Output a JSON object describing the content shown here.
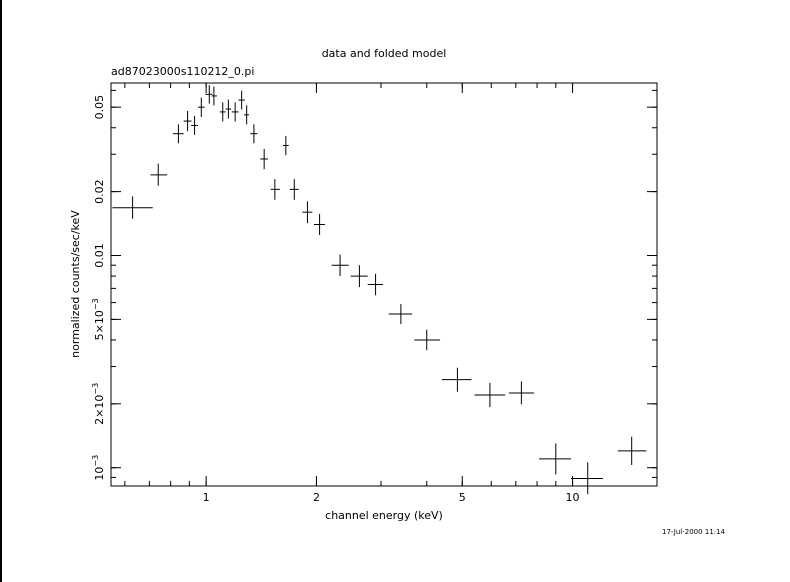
{
  "chart_data": {
    "type": "scatter",
    "title": "data and folded model",
    "subtitle": "ad87023000s110212_0.pi",
    "xlabel": "channel energy (keV)",
    "ylabel": "normalized counts/sec/keV",
    "xscale": "log",
    "yscale": "log",
    "xlim": [
      0.55,
      17
    ],
    "ylim": [
      0.00082,
      0.065
    ],
    "grid": false,
    "timestamp": "17-Jul-2000 11:14",
    "x_ticks": [
      {
        "value": 1,
        "label": "1"
      },
      {
        "value": 2,
        "label": "2"
      },
      {
        "value": 5,
        "label": "5"
      },
      {
        "value": 10,
        "label": "10"
      }
    ],
    "y_ticks": [
      {
        "value": 0.001,
        "label": "10",
        "sup": "−3"
      },
      {
        "value": 0.002,
        "label": "2×10",
        "sup": "−3"
      },
      {
        "value": 0.005,
        "label": "5×10",
        "sup": "−3"
      },
      {
        "value": 0.01,
        "label": "0.01",
        "sup": ""
      },
      {
        "value": 0.02,
        "label": "0.02",
        "sup": ""
      },
      {
        "value": 0.05,
        "label": "0.05",
        "sup": ""
      }
    ],
    "points": [
      {
        "x": 0.63,
        "xlo": 0.555,
        "xhi": 0.715,
        "y": 0.0168,
        "ylo": 0.0149,
        "yhi": 0.019
      },
      {
        "x": 0.74,
        "xlo": 0.705,
        "xhi": 0.783,
        "y": 0.024,
        "ylo": 0.0213,
        "yhi": 0.0271
      },
      {
        "x": 0.84,
        "xlo": 0.812,
        "xhi": 0.868,
        "y": 0.0375,
        "ylo": 0.0338,
        "yhi": 0.0415
      },
      {
        "x": 0.89,
        "xlo": 0.868,
        "xhi": 0.912,
        "y": 0.043,
        "ylo": 0.0385,
        "yhi": 0.048
      },
      {
        "x": 0.93,
        "xlo": 0.91,
        "xhi": 0.95,
        "y": 0.041,
        "ylo": 0.037,
        "yhi": 0.0455
      },
      {
        "x": 0.97,
        "xlo": 0.95,
        "xhi": 0.99,
        "y": 0.05,
        "ylo": 0.045,
        "yhi": 0.0555
      },
      {
        "x": 1.02,
        "xlo": 0.995,
        "xhi": 1.04,
        "y": 0.0575,
        "ylo": 0.052,
        "yhi": 0.0635
      },
      {
        "x": 1.05,
        "xlo": 1.035,
        "xhi": 1.07,
        "y": 0.0565,
        "ylo": 0.051,
        "yhi": 0.0625
      },
      {
        "x": 1.11,
        "xlo": 1.09,
        "xhi": 1.13,
        "y": 0.0475,
        "ylo": 0.0428,
        "yhi": 0.0527
      },
      {
        "x": 1.15,
        "xlo": 1.13,
        "xhi": 1.17,
        "y": 0.049,
        "ylo": 0.0442,
        "yhi": 0.0543
      },
      {
        "x": 1.2,
        "xlo": 1.175,
        "xhi": 1.225,
        "y": 0.0475,
        "ylo": 0.0428,
        "yhi": 0.0527
      },
      {
        "x": 1.25,
        "xlo": 1.225,
        "xhi": 1.275,
        "y": 0.054,
        "ylo": 0.0488,
        "yhi": 0.0598
      },
      {
        "x": 1.29,
        "xlo": 1.27,
        "xhi": 1.31,
        "y": 0.046,
        "ylo": 0.0415,
        "yhi": 0.051
      },
      {
        "x": 1.35,
        "xlo": 1.32,
        "xhi": 1.38,
        "y": 0.0375,
        "ylo": 0.0338,
        "yhi": 0.0415
      },
      {
        "x": 1.44,
        "xlo": 1.405,
        "xhi": 1.475,
        "y": 0.0285,
        "ylo": 0.0255,
        "yhi": 0.0318
      },
      {
        "x": 1.54,
        "xlo": 1.5,
        "xhi": 1.59,
        "y": 0.0205,
        "ylo": 0.0183,
        "yhi": 0.0229
      },
      {
        "x": 1.65,
        "xlo": 1.62,
        "xhi": 1.68,
        "y": 0.033,
        "ylo": 0.0297,
        "yhi": 0.0366
      },
      {
        "x": 1.74,
        "xlo": 1.69,
        "xhi": 1.79,
        "y": 0.0205,
        "ylo": 0.0183,
        "yhi": 0.0229
      },
      {
        "x": 1.89,
        "xlo": 1.83,
        "xhi": 1.95,
        "y": 0.016,
        "ylo": 0.0142,
        "yhi": 0.018
      },
      {
        "x": 2.04,
        "xlo": 1.97,
        "xhi": 2.11,
        "y": 0.014,
        "ylo": 0.0125,
        "yhi": 0.0157
      },
      {
        "x": 2.32,
        "xlo": 2.2,
        "xhi": 2.45,
        "y": 0.009,
        "ylo": 0.008,
        "yhi": 0.0101
      },
      {
        "x": 2.62,
        "xlo": 2.48,
        "xhi": 2.76,
        "y": 0.008,
        "ylo": 0.0071,
        "yhi": 0.009
      },
      {
        "x": 2.9,
        "xlo": 2.76,
        "xhi": 3.04,
        "y": 0.0073,
        "ylo": 0.0065,
        "yhi": 0.0082
      },
      {
        "x": 3.4,
        "xlo": 3.15,
        "xhi": 3.65,
        "y": 0.0053,
        "ylo": 0.00475,
        "yhi": 0.0059
      },
      {
        "x": 4.0,
        "xlo": 3.7,
        "xhi": 4.35,
        "y": 0.004,
        "ylo": 0.00358,
        "yhi": 0.00447
      },
      {
        "x": 4.85,
        "xlo": 4.4,
        "xhi": 5.3,
        "y": 0.0026,
        "ylo": 0.00228,
        "yhi": 0.00296
      },
      {
        "x": 5.95,
        "xlo": 5.4,
        "xhi": 6.55,
        "y": 0.0022,
        "ylo": 0.00193,
        "yhi": 0.00251
      },
      {
        "x": 7.25,
        "xlo": 6.7,
        "xhi": 7.85,
        "y": 0.00225,
        "ylo": 0.00199,
        "yhi": 0.00255
      },
      {
        "x": 9.0,
        "xlo": 8.1,
        "xhi": 9.9,
        "y": 0.0011,
        "ylo": 0.00093,
        "yhi": 0.0013
      },
      {
        "x": 11.0,
        "xlo": 9.9,
        "xhi": 12.1,
        "y": 0.00089,
        "ylo": 0.00075,
        "yhi": 0.00106
      },
      {
        "x": 14.5,
        "xlo": 13.3,
        "xhi": 15.9,
        "y": 0.0012,
        "ylo": 0.00103,
        "yhi": 0.0014
      }
    ]
  }
}
